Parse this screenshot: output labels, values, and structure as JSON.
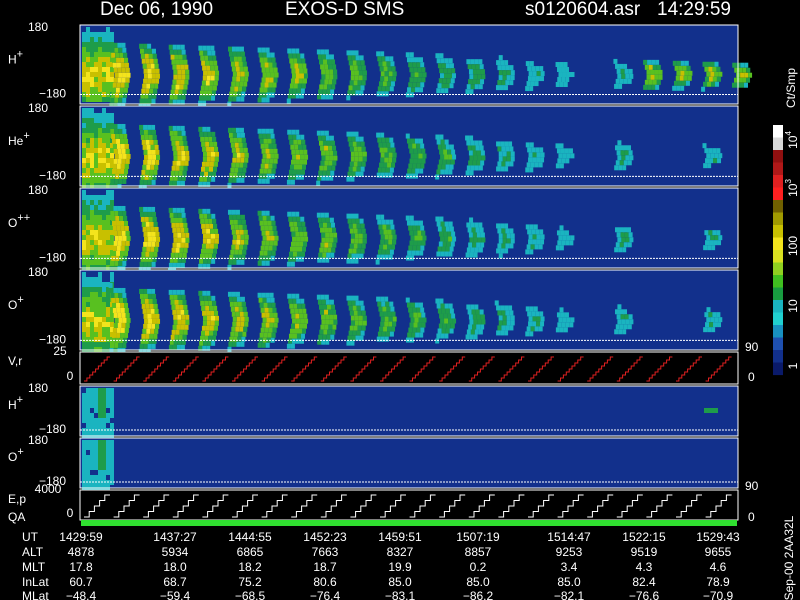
{
  "header": {
    "date": "Dec 06, 1990",
    "instrument": "EXOS-D SMS",
    "file": "s0120604.asr",
    "time": "14:29:59"
  },
  "panels": [
    {
      "ion": "H",
      "charge": "+",
      "top": "180",
      "bottom": "−180"
    },
    {
      "ion": "He",
      "charge": "+",
      "top": "180",
      "bottom": "−180"
    },
    {
      "ion": "O",
      "charge": "++",
      "top": "180",
      "bottom": "−180"
    },
    {
      "ion": "O",
      "charge": "+",
      "top": "180",
      "bottom": "−180"
    },
    {
      "ion": "H",
      "charge": "+",
      "top": "180",
      "bottom": "−180"
    },
    {
      "ion": "O",
      "charge": "+",
      "top": "180",
      "bottom": "−180"
    }
  ],
  "vr": {
    "label": "V,r",
    "top": "25",
    "bottom": "0",
    "right_top": "90",
    "right_bottom": "0"
  },
  "ep": {
    "label": "E,p",
    "label2": "QA",
    "top": "4000",
    "bottom": "0",
    "right_top": "90",
    "right_bottom": "0"
  },
  "colorbar": {
    "unit": "Ct/Smp",
    "labels": [
      {
        "base": "10",
        "exp": "4"
      },
      {
        "base": "10",
        "exp": "3"
      },
      {
        "base": "100"
      },
      {
        "base": "10"
      },
      {
        "base": "1"
      }
    ]
  },
  "footer": {
    "rows": [
      {
        "label": "UT",
        "values": [
          "1429:59",
          "1437:27",
          "1444:55",
          "1452:23",
          "1459:51",
          "1507:19",
          "1514:47",
          "1522:15",
          "1529:43"
        ]
      },
      {
        "label": "ALT",
        "values": [
          "4878",
          "5934",
          "6865",
          "7663",
          "8327",
          "8857",
          "9253",
          "9519",
          "9655"
        ]
      },
      {
        "label": "MLT",
        "values": [
          "17.8",
          "18.0",
          "18.2",
          "18.7",
          "19.9",
          "0.2",
          "3.4",
          "4.3",
          "4.6"
        ]
      },
      {
        "label": "InLat",
        "values": [
          "60.7",
          "68.7",
          "75.2",
          "80.6",
          "85.0",
          "85.0",
          "85.0",
          "82.4",
          "78.9"
        ]
      },
      {
        "label": "MLat",
        "values": [
          "−48.4",
          "−59.4",
          "−68.5",
          "−76.4",
          "−83.1",
          "−86.2",
          "−82.1",
          "−76.6",
          "−70.9"
        ]
      }
    ]
  },
  "stamp": "Sep-00  2AA32L"
}
